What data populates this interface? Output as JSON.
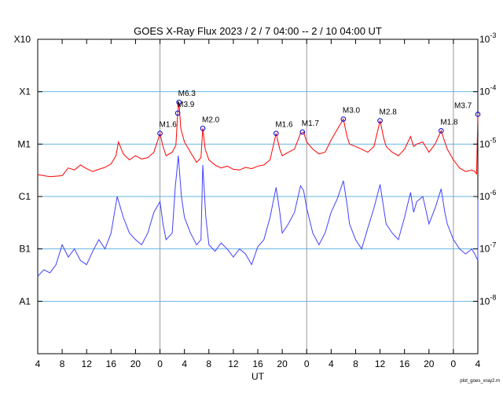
{
  "chart_data": {
    "type": "line",
    "title": "GOES X-Ray Flux   2023  /  2  /  7    04:00  --   2  / 10   04:00    UT",
    "xlabel": "UT",
    "x_range_hours": [
      0,
      72
    ],
    "x_tick_labels": [
      "4",
      "8",
      "12",
      "16",
      "20",
      "0",
      "4",
      "8",
      "12",
      "16",
      "20",
      "0",
      "4",
      "8",
      "12",
      "16",
      "20",
      "0",
      "4"
    ],
    "x_tick_hours": [
      0,
      4,
      8,
      12,
      16,
      20,
      24,
      28,
      32,
      36,
      40,
      44,
      48,
      52,
      56,
      60,
      64,
      68,
      72
    ],
    "day_boundaries_hours": [
      20,
      44,
      68
    ],
    "y_scale": "log",
    "ylim": [
      1e-09,
      0.001
    ],
    "left_axis_labels": [
      {
        "label": "X10",
        "flux": 0.001
      },
      {
        "label": "X1",
        "flux": 0.0001
      },
      {
        "label": "M1",
        "flux": 1e-05
      },
      {
        "label": "C1",
        "flux": 1e-06
      },
      {
        "label": "B1",
        "flux": 1e-07
      },
      {
        "label": "A1",
        "flux": 1e-08
      }
    ],
    "right_axis_labels": [
      {
        "base": "10",
        "exp": "-3",
        "flux": 0.001
      },
      {
        "base": "10",
        "exp": "-4",
        "flux": 0.0001
      },
      {
        "base": "10",
        "exp": "-5",
        "flux": 1e-05
      },
      {
        "base": "10",
        "exp": "-6",
        "flux": 1e-06
      },
      {
        "base": "10",
        "exp": "-7",
        "flux": 1e-07
      },
      {
        "base": "10",
        "exp": "-8",
        "flux": 1e-08
      }
    ],
    "gridlines_flux": [
      0.0001,
      1e-05,
      1e-06,
      1e-07,
      1e-08
    ],
    "series": [
      {
        "color": "#ff0000",
        "points": [
          [
            0,
            2.6e-06
          ],
          [
            2,
            2.4e-06
          ],
          [
            4,
            2.5e-06
          ],
          [
            5,
            3.5e-06
          ],
          [
            6,
            3.2e-06
          ],
          [
            7,
            4e-06
          ],
          [
            8,
            3.4e-06
          ],
          [
            9,
            3e-06
          ],
          [
            10,
            3.3e-06
          ],
          [
            11,
            3.6e-06
          ],
          [
            12,
            4.2e-06
          ],
          [
            12.8,
            6e-06
          ],
          [
            13.2,
            1.1e-05
          ],
          [
            14,
            6.5e-06
          ],
          [
            15,
            5e-06
          ],
          [
            16,
            6e-06
          ],
          [
            17,
            5.2e-06
          ],
          [
            18,
            5.5e-06
          ],
          [
            19,
            7e-06
          ],
          [
            20,
            1.6e-05
          ],
          [
            20.5,
            9e-06
          ],
          [
            21,
            6e-06
          ],
          [
            22,
            7e-06
          ],
          [
            22.6,
            9.5e-06
          ],
          [
            22.9,
            3.9e-05
          ],
          [
            23.1,
            6.3e-05
          ],
          [
            23.4,
            2e-05
          ],
          [
            24,
            1.1e-05
          ],
          [
            25,
            7e-06
          ],
          [
            26,
            4.5e-06
          ],
          [
            26.7,
            5.5e-06
          ],
          [
            27,
            2e-05
          ],
          [
            27.4,
            8e-06
          ],
          [
            28,
            5e-06
          ],
          [
            29,
            4e-06
          ],
          [
            30,
            3.5e-06
          ],
          [
            31,
            3.8e-06
          ],
          [
            32,
            3.3e-06
          ],
          [
            33,
            3.2e-06
          ],
          [
            34,
            3.6e-06
          ],
          [
            35,
            3.4e-06
          ],
          [
            36,
            3.8e-06
          ],
          [
            37,
            4e-06
          ],
          [
            38,
            5e-06
          ],
          [
            39,
            1.6e-05
          ],
          [
            39.6,
            8e-06
          ],
          [
            40,
            6e-06
          ],
          [
            41,
            7e-06
          ],
          [
            42,
            8e-06
          ],
          [
            43,
            1.6e-05
          ],
          [
            43.5,
            1.7e-05
          ],
          [
            44,
            1.1e-05
          ],
          [
            45,
            8e-06
          ],
          [
            46,
            6.5e-06
          ],
          [
            47,
            7e-06
          ],
          [
            48,
            1.2e-05
          ],
          [
            49,
            1.9e-05
          ],
          [
            50,
            3e-05
          ],
          [
            50.6,
            1.4e-05
          ],
          [
            51,
            1e-05
          ],
          [
            52,
            9e-06
          ],
          [
            53,
            8e-06
          ],
          [
            54,
            7e-06
          ],
          [
            55,
            9e-06
          ],
          [
            56,
            2.8e-05
          ],
          [
            56.6,
            1.3e-05
          ],
          [
            57,
            9e-06
          ],
          [
            58,
            7e-06
          ],
          [
            59,
            6e-06
          ],
          [
            60,
            8e-06
          ],
          [
            61,
            1.4e-05
          ],
          [
            61.5,
            9e-06
          ],
          [
            62,
            1e-05
          ],
          [
            63,
            1.1e-05
          ],
          [
            64,
            7e-06
          ],
          [
            65,
            1e-05
          ],
          [
            66,
            1.8e-05
          ],
          [
            66.6,
            1.1e-05
          ],
          [
            67,
            8e-06
          ],
          [
            68,
            5e-06
          ],
          [
            69,
            3.5e-06
          ],
          [
            70,
            3e-06
          ],
          [
            71,
            3.2e-06
          ],
          [
            71.5,
            3e-06
          ],
          [
            71.8,
            2.7e-06
          ],
          [
            72.2,
            3.7e-05
          ]
        ]
      },
      {
        "color": "#4040ff",
        "points": [
          [
            0,
            3e-08
          ],
          [
            1,
            4e-08
          ],
          [
            2,
            3.5e-08
          ],
          [
            3,
            5e-08
          ],
          [
            4,
            1.2e-07
          ],
          [
            5,
            7e-08
          ],
          [
            6,
            1e-07
          ],
          [
            7,
            6e-08
          ],
          [
            8,
            5e-08
          ],
          [
            9,
            9e-08
          ],
          [
            10,
            1.5e-07
          ],
          [
            11,
            1e-07
          ],
          [
            12,
            2e-07
          ],
          [
            13,
            1e-06
          ],
          [
            14,
            4e-07
          ],
          [
            15,
            2e-07
          ],
          [
            16,
            1.5e-07
          ],
          [
            17,
            1.2e-07
          ],
          [
            18,
            2e-07
          ],
          [
            19,
            5e-07
          ],
          [
            20,
            8e-07
          ],
          [
            20.5,
            3e-07
          ],
          [
            21,
            1.5e-07
          ],
          [
            22,
            2e-07
          ],
          [
            22.5,
            1.5e-06
          ],
          [
            23,
            6e-06
          ],
          [
            23.5,
            1e-06
          ],
          [
            24,
            4e-07
          ],
          [
            25,
            2e-07
          ],
          [
            26,
            1.2e-07
          ],
          [
            26.7,
            1.5e-07
          ],
          [
            27,
            4e-06
          ],
          [
            27.5,
            4e-07
          ],
          [
            28,
            1.2e-07
          ],
          [
            29,
            9e-08
          ],
          [
            30,
            1.3e-07
          ],
          [
            31,
            1e-07
          ],
          [
            32,
            7e-08
          ],
          [
            33,
            1e-07
          ],
          [
            34,
            8e-08
          ],
          [
            35,
            5e-08
          ],
          [
            36,
            1.1e-07
          ],
          [
            37,
            1.5e-07
          ],
          [
            38,
            4e-07
          ],
          [
            39,
            1.5e-06
          ],
          [
            39.6,
            5e-07
          ],
          [
            40,
            2e-07
          ],
          [
            41,
            3e-07
          ],
          [
            42,
            5e-07
          ],
          [
            43,
            1.6e-06
          ],
          [
            43.5,
            1.3e-06
          ],
          [
            44,
            6e-07
          ],
          [
            45,
            2e-07
          ],
          [
            46,
            1.2e-07
          ],
          [
            47,
            2e-07
          ],
          [
            48,
            5e-07
          ],
          [
            49,
            9e-07
          ],
          [
            50,
            2e-06
          ],
          [
            50.6,
            7e-07
          ],
          [
            51,
            3e-07
          ],
          [
            52,
            1.5e-07
          ],
          [
            53,
            1e-07
          ],
          [
            54,
            2.5e-07
          ],
          [
            55,
            6e-07
          ],
          [
            56,
            1.7e-06
          ],
          [
            56.6,
            6e-07
          ],
          [
            57,
            3e-07
          ],
          [
            58,
            2e-07
          ],
          [
            59,
            1.5e-07
          ],
          [
            60,
            4e-07
          ],
          [
            61,
            1.2e-06
          ],
          [
            61.5,
            5e-07
          ],
          [
            62,
            8e-07
          ],
          [
            63,
            1e-06
          ],
          [
            64,
            3e-07
          ],
          [
            65,
            6e-07
          ],
          [
            66,
            1.4e-06
          ],
          [
            66.6,
            5e-07
          ],
          [
            67,
            3e-07
          ],
          [
            68,
            1.5e-07
          ],
          [
            69,
            1e-07
          ],
          [
            70,
            8e-08
          ],
          [
            71,
            1e-07
          ],
          [
            71.5,
            8e-08
          ],
          [
            72,
            6e-08
          ],
          [
            72.3,
            9e-07
          ]
        ]
      }
    ],
    "annotations": [
      {
        "label": "M1.6",
        "hour": 20.0,
        "flux": 1.6e-05
      },
      {
        "label": "M6.3",
        "hour": 23.1,
        "flux": 6.3e-05
      },
      {
        "label": "M3.9",
        "hour": 22.9,
        "flux": 3.9e-05
      },
      {
        "label": "M2.0",
        "hour": 27.0,
        "flux": 2e-05
      },
      {
        "label": "M1.6",
        "hour": 39.0,
        "flux": 1.6e-05
      },
      {
        "label": "M1.7",
        "hour": 43.3,
        "flux": 1.7e-05
      },
      {
        "label": "M3.0",
        "hour": 50.0,
        "flux": 3e-05
      },
      {
        "label": "M2.8",
        "hour": 56.0,
        "flux": 2.8e-05
      },
      {
        "label": "M1.8",
        "hour": 66.0,
        "flux": 1.8e-05
      },
      {
        "label": "M3.7",
        "hour": 72.2,
        "flux": 3.7e-05
      }
    ],
    "grid": true,
    "grid_color": "#67b7e6"
  },
  "footer": "plot_goes_xray2.m"
}
